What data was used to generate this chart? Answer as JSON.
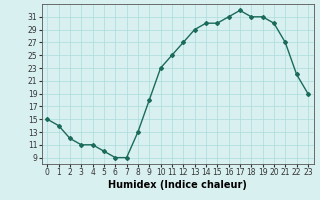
{
  "x": [
    0,
    1,
    2,
    3,
    4,
    5,
    6,
    7,
    8,
    9,
    10,
    11,
    12,
    13,
    14,
    15,
    16,
    17,
    18,
    19,
    20,
    21,
    22,
    23
  ],
  "y": [
    15,
    14,
    12,
    11,
    11,
    10,
    9,
    9,
    13,
    18,
    23,
    25,
    27,
    29,
    30,
    30,
    31,
    32,
    31,
    31,
    30,
    27,
    22,
    19
  ],
  "line_color": "#1a6b5a",
  "marker": "D",
  "marker_size": 2,
  "bg_color": "#d9f0f0",
  "grid_color": "#aadddd",
  "xlabel": "Humidex (Indice chaleur)",
  "xlim": [
    -0.5,
    23.5
  ],
  "ylim": [
    8,
    33
  ],
  "yticks": [
    9,
    11,
    13,
    15,
    17,
    19,
    21,
    23,
    25,
    27,
    29,
    31
  ],
  "xticks": [
    0,
    1,
    2,
    3,
    4,
    5,
    6,
    7,
    8,
    9,
    10,
    11,
    12,
    13,
    14,
    15,
    16,
    17,
    18,
    19,
    20,
    21,
    22,
    23
  ],
  "xtick_labels": [
    "0",
    "1",
    "2",
    "3",
    "4",
    "5",
    "6",
    "7",
    "8",
    "9",
    "10",
    "11",
    "12",
    "13",
    "14",
    "15",
    "16",
    "17",
    "18",
    "19",
    "20",
    "21",
    "22",
    "23"
  ],
  "tick_fontsize": 5.5,
  "xlabel_fontsize": 7,
  "line_width": 1.0
}
